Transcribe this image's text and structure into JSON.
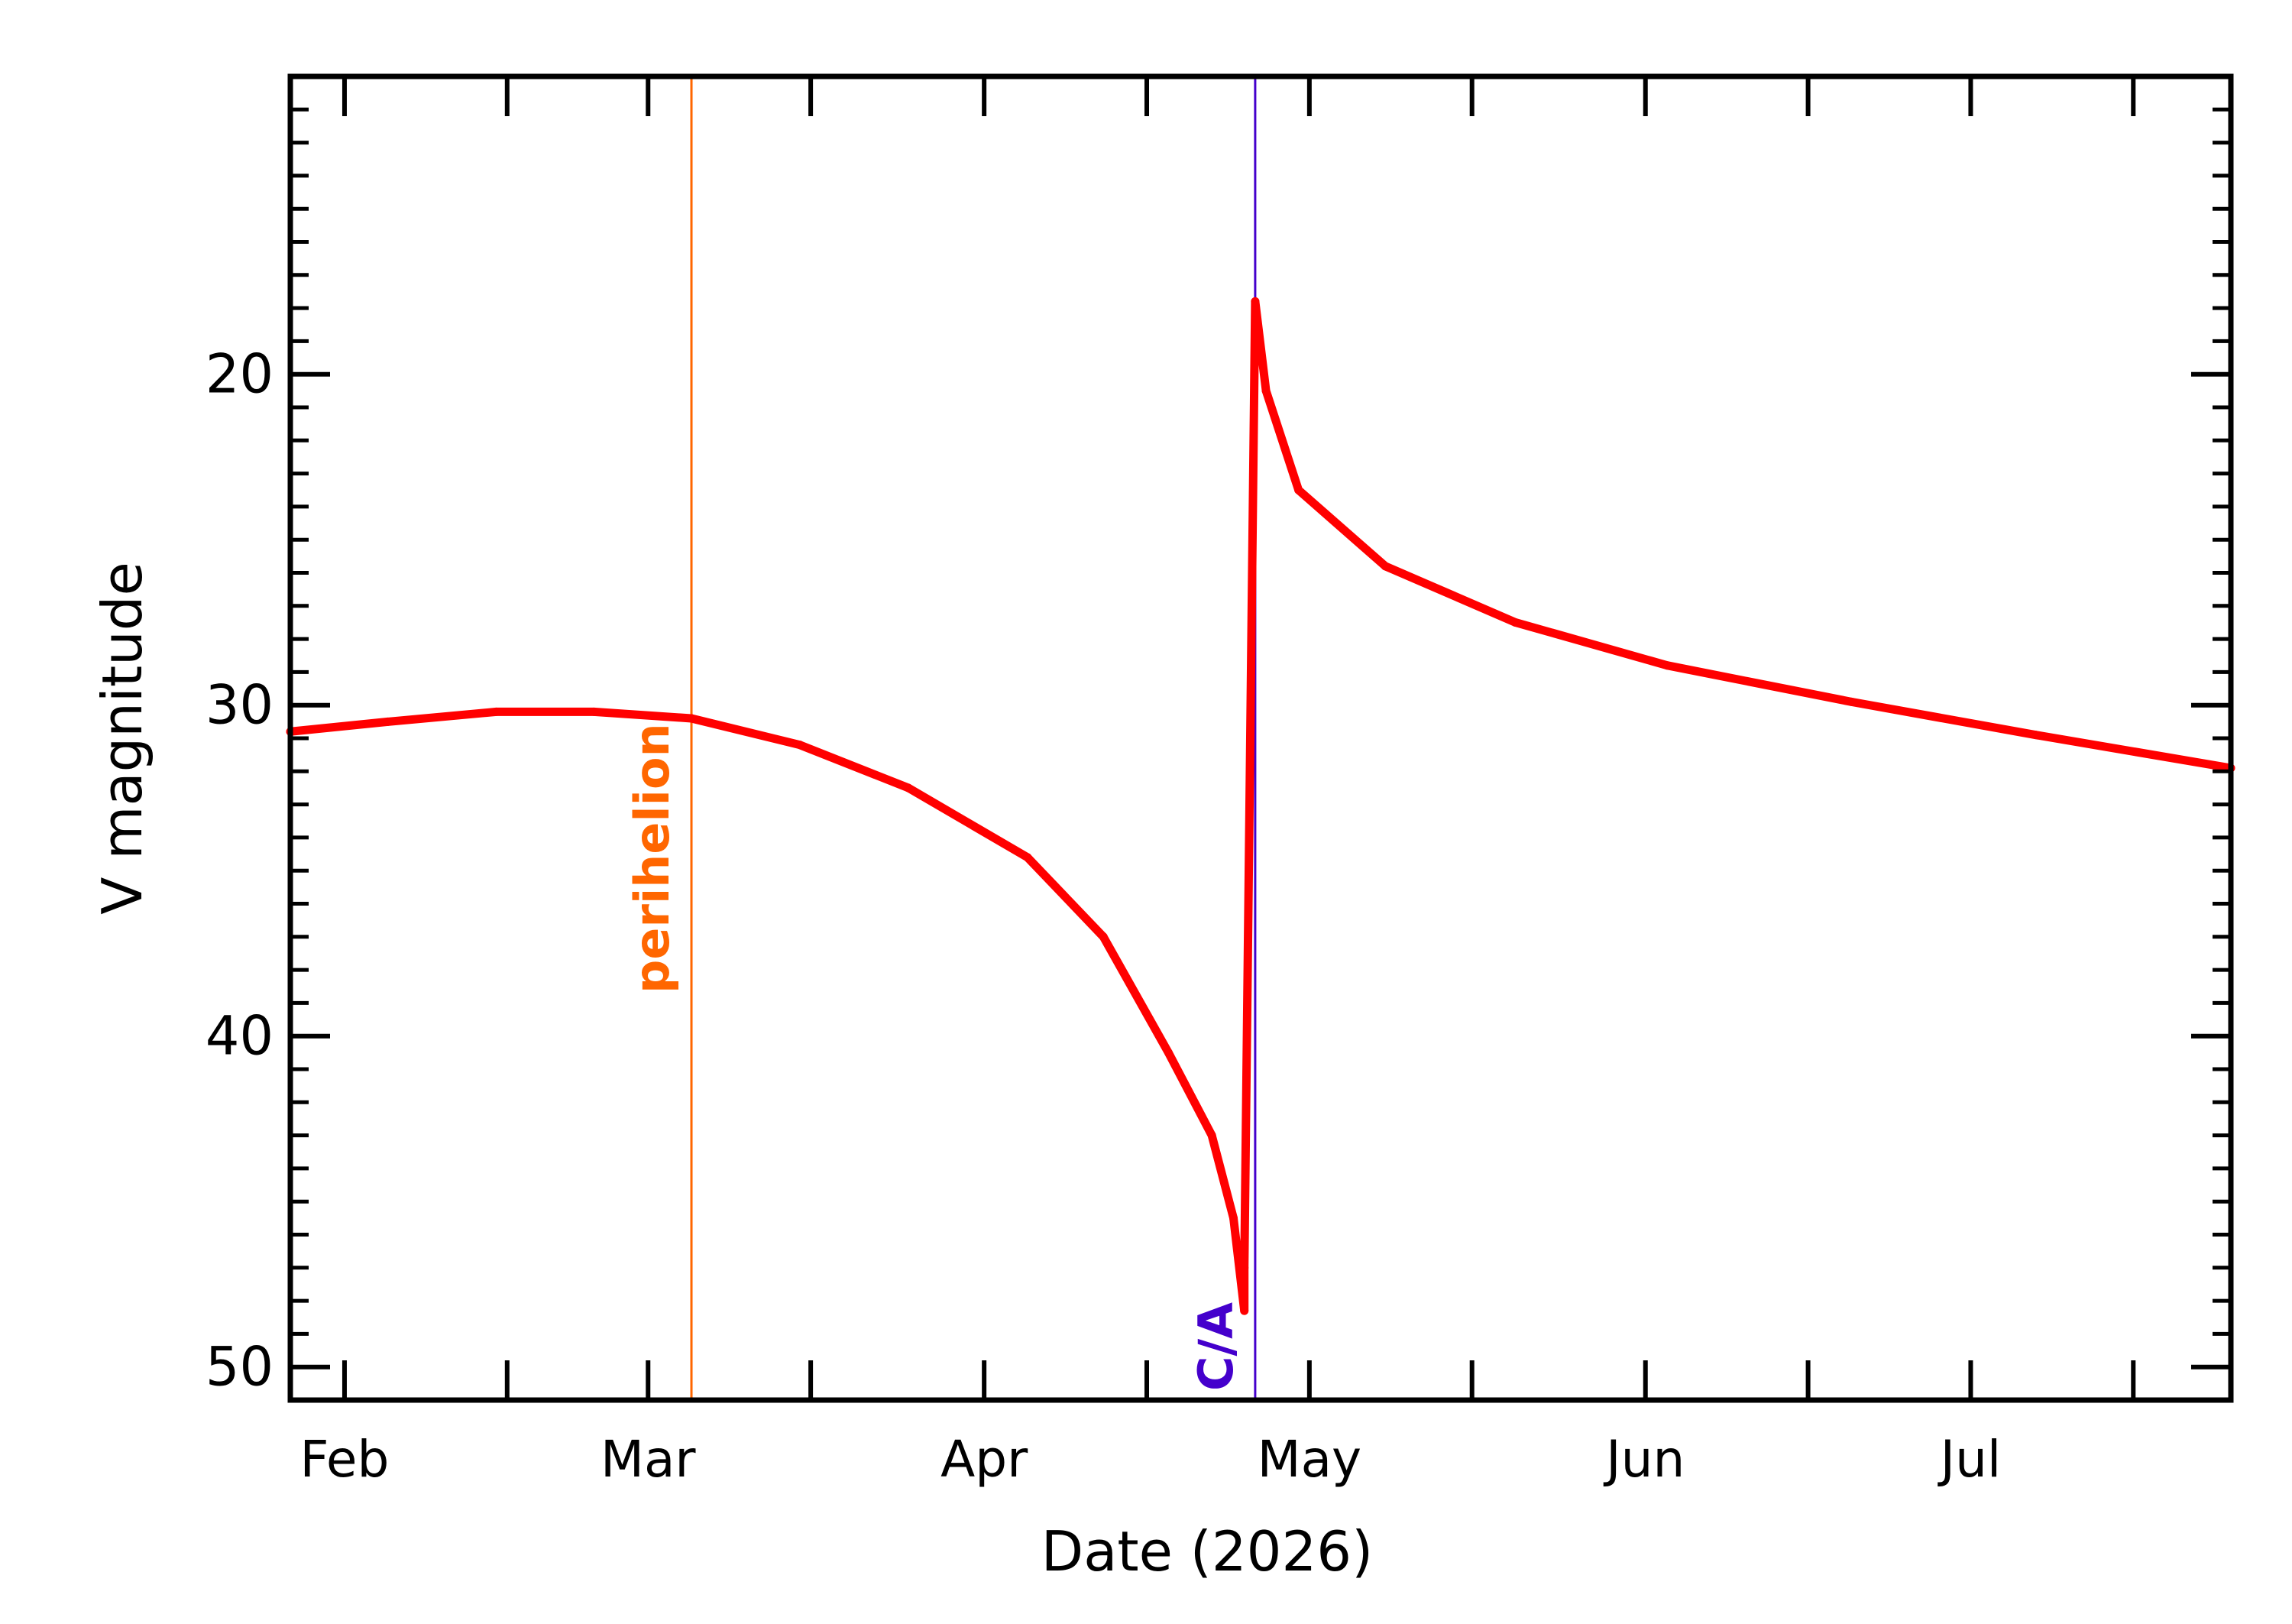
{
  "chart_data": {
    "type": "line",
    "title": "",
    "xlabel": "Date (2026)",
    "ylabel": "V magnitude",
    "x_range": [
      "2026-01-27",
      "2026-07-25"
    ],
    "y_range": [
      11,
      51
    ],
    "y_inverted": true,
    "x_tick_labels": [
      {
        "date": "2026-02-01",
        "label": "Feb"
      },
      {
        "date": "2026-03-01",
        "label": "Mar"
      },
      {
        "date": "2026-04-01",
        "label": "Apr"
      },
      {
        "date": "2026-05-01",
        "label": "May"
      },
      {
        "date": "2026-06-01",
        "label": "Jun"
      },
      {
        "date": "2026-07-01",
        "label": "Jul"
      }
    ],
    "x_major_ticks": [
      "2026-02-16",
      "2026-03-16",
      "2026-04-16",
      "2026-05-16",
      "2026-06-16",
      "2026-07-16"
    ],
    "y_major_ticks": [
      20,
      30,
      40,
      50
    ],
    "y_minor_step": 1,
    "annotations": [
      {
        "date": "2026-03-05",
        "label": "perihelion",
        "color": "#ff6600"
      },
      {
        "date": "2026-04-26",
        "label": "C/A",
        "color": "#4400cc"
      }
    ],
    "series": [
      {
        "color": "#ff0000",
        "points": [
          {
            "x": "2026-01-27",
            "y": 30.8
          },
          {
            "x": "2026-02-05",
            "y": 30.5
          },
          {
            "x": "2026-02-15",
            "y": 30.2
          },
          {
            "x": "2026-02-24",
            "y": 30.2
          },
          {
            "x": "2026-03-05",
            "y": 30.4
          },
          {
            "x": "2026-03-15",
            "y": 31.2
          },
          {
            "x": "2026-03-25",
            "y": 32.5
          },
          {
            "x": "2026-04-05",
            "y": 34.6
          },
          {
            "x": "2026-04-12",
            "y": 37.0
          },
          {
            "x": "2026-04-18",
            "y": 40.5
          },
          {
            "x": "2026-04-22",
            "y": 43.0
          },
          {
            "x": "2026-04-24",
            "y": 45.5
          },
          {
            "x": "2026-04-25",
            "y": 48.3
          },
          {
            "x": "2026-04-25",
            "y": 47.0
          },
          {
            "x": "2026-04-26",
            "y": 17.8
          },
          {
            "x": "2026-04-27",
            "y": 20.5
          },
          {
            "x": "2026-04-30",
            "y": 23.5
          },
          {
            "x": "2026-05-08",
            "y": 25.8
          },
          {
            "x": "2026-05-20",
            "y": 27.5
          },
          {
            "x": "2026-06-03",
            "y": 28.8
          },
          {
            "x": "2026-06-20",
            "y": 29.9
          },
          {
            "x": "2026-07-07",
            "y": 30.9
          },
          {
            "x": "2026-07-25",
            "y": 31.9
          }
        ]
      }
    ]
  }
}
